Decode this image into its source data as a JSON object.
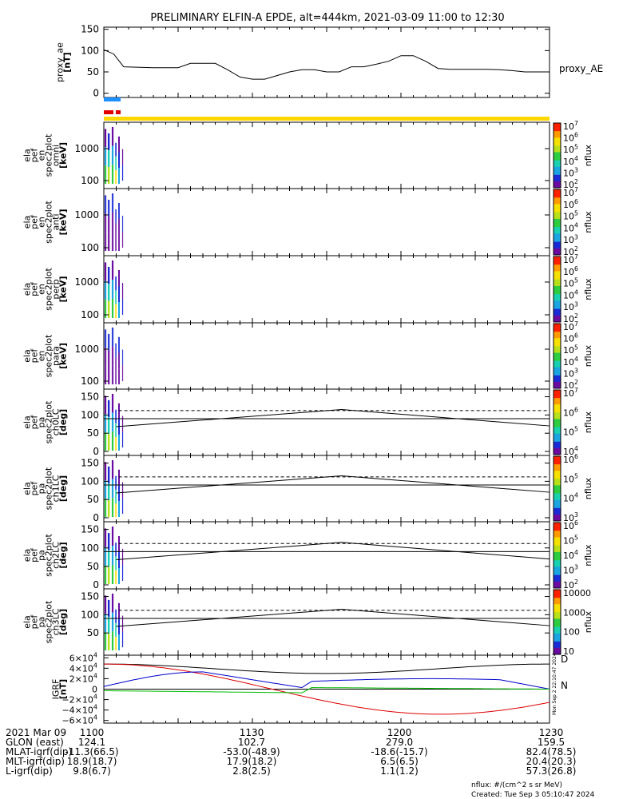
{
  "title": "PRELIMINARY ELFIN-A EPDE, alt=444km, 2021-03-09 11:00 to 12:30",
  "colors": {
    "ae_line": "#000000",
    "bar_blue": "#1e90ff",
    "bar_red": "#e00000",
    "bar_yellow": "#ffd700",
    "bx": "#0000cc",
    "by": "#00bb00",
    "bz": "#dd0000",
    "b_total": "#000000"
  },
  "chart_data": [
    {
      "type": "line",
      "panel": "proxy_ae",
      "ylabel": [
        "proxy_ae",
        "[nT]"
      ],
      "legend": "proxy_AE",
      "ylim": [
        -10,
        155
      ],
      "yticks": [
        "0",
        "50",
        "100",
        "150"
      ],
      "ytick_values": [
        0,
        50,
        100,
        150
      ],
      "x_minutes": [
        0,
        4,
        8,
        20,
        30,
        35,
        45,
        50,
        55,
        60,
        65,
        68,
        75,
        80,
        85,
        90,
        95,
        100,
        105,
        110,
        115,
        120,
        125,
        130,
        135,
        140,
        145,
        150,
        155,
        160,
        165,
        170,
        175,
        180
      ],
      "values": [
        102,
        92,
        62,
        60,
        60,
        70,
        70,
        55,
        38,
        33,
        33,
        38,
        50,
        55,
        55,
        50,
        50,
        62,
        62,
        68,
        75,
        88,
        88,
        75,
        58,
        56,
        56,
        56,
        56,
        55,
        53,
        50,
        50,
        50
      ]
    },
    {
      "type": "heatmap",
      "panel": "omni",
      "ylabel": [
        "ela",
        "pef",
        "en",
        "spec2plot",
        "omni",
        "[keV]"
      ],
      "yticks": [
        "100",
        "1000"
      ],
      "colorbar_ticks": [
        "10^7",
        "10^6",
        "10^5",
        "10^4",
        "10^3",
        "10^2"
      ],
      "colorbar_label": "nflux"
    },
    {
      "type": "heatmap",
      "panel": "anti",
      "ylabel": [
        "ela",
        "pef",
        "en",
        "spec2plot",
        "anti",
        "[keV]"
      ],
      "yticks": [
        "100",
        "1000"
      ],
      "colorbar_ticks": [
        "10^7",
        "10^6",
        "10^5",
        "10^4",
        "10^3",
        "10^2"
      ],
      "colorbar_label": "nflux"
    },
    {
      "type": "heatmap",
      "panel": "perp",
      "ylabel": [
        "ela",
        "pef",
        "en",
        "spec2plot",
        "perp",
        "[keV]"
      ],
      "yticks": [
        "100",
        "1000"
      ],
      "colorbar_ticks": [
        "10^7",
        "10^6",
        "10^5",
        "10^4",
        "10^3",
        "10^2"
      ],
      "colorbar_label": "nflux"
    },
    {
      "type": "heatmap",
      "panel": "para",
      "ylabel": [
        "ela",
        "pef",
        "en",
        "spec2plot",
        "para",
        "[keV]"
      ],
      "yticks": [
        "100",
        "1000"
      ],
      "colorbar_ticks": [
        "10^7",
        "10^6",
        "10^5",
        "10^4",
        "10^3",
        "10^2"
      ],
      "colorbar_label": "nflux"
    },
    {
      "type": "heatmap",
      "panel": "ch0LC",
      "ylabel": [
        "ela",
        "pef",
        "pa",
        "spec2plot",
        "ch0LC",
        "[deg]"
      ],
      "yticks": [
        "0",
        "50",
        "100",
        "150"
      ],
      "colorbar_ticks": [
        "10^7",
        "10^6",
        "10^5",
        "10^4"
      ],
      "colorbar_label": "nflux"
    },
    {
      "type": "heatmap",
      "panel": "ch1LC",
      "ylabel": [
        "ela",
        "pef",
        "pa",
        "spec2plot",
        "ch1LC",
        "[deg]"
      ],
      "yticks": [
        "0",
        "50",
        "100",
        "150"
      ],
      "colorbar_ticks": [
        "10^6",
        "10^5",
        "10^4",
        "10^3"
      ],
      "colorbar_label": "nflux"
    },
    {
      "type": "heatmap",
      "panel": "ch2LC",
      "ylabel": [
        "ela",
        "pef",
        "pa",
        "spec2plot",
        "ch2LC",
        "[deg]"
      ],
      "yticks": [
        "0",
        "50",
        "100",
        "150"
      ],
      "colorbar_ticks": [
        "10^6",
        "10^5",
        "10^4",
        "10^3",
        "10^2"
      ],
      "colorbar_label": "nflux"
    },
    {
      "type": "heatmap",
      "panel": "ch3LC",
      "ylabel": [
        "ela",
        "pef",
        "pa",
        "spec2plot",
        "ch3LC",
        "[deg]"
      ],
      "yticks": [
        "50",
        "100",
        "150"
      ],
      "colorbar_ticks": [
        "10000",
        "1000",
        "100",
        "10"
      ],
      "colorbar_label": "nflux"
    },
    {
      "type": "line",
      "panel": "IGRF",
      "ylabel": [
        "IGRF",
        "[nT]"
      ],
      "ylim": [
        -65000,
        65000
      ],
      "yticks": [
        "6×10^4",
        "4×10^4",
        "2×10^4",
        "0",
        "−2×10^4",
        "−4×10^4",
        "−6×10^4"
      ],
      "ytick_values": [
        60000,
        40000,
        20000,
        0,
        -20000,
        -40000,
        -60000
      ],
      "legend": [
        "D",
        "N"
      ]
    }
  ],
  "xaxis": {
    "range_minutes": [
      0,
      180
    ],
    "tick_labels": [
      "1100",
      "1130",
      "1200",
      "1230"
    ],
    "tick_minutes": [
      0,
      30,
      60,
      90
    ]
  },
  "footer_rows": [
    {
      "label": "2021 Mar 09",
      "values": [
        "1100",
        "1130",
        "1200",
        "1230"
      ]
    },
    {
      "label": "GLON (east)",
      "values": [
        "124.1",
        "102.7",
        "279.0",
        "159.5"
      ]
    },
    {
      "label": "MLAT-igrf(dip)",
      "values": [
        "-11.3(66.5)",
        "-53.0(-48.9)",
        "-18.6(-15.7)",
        "82.4(78.5)"
      ]
    },
    {
      "label": "MLT-igrf(dip)",
      "values": [
        "18.9(18.7)",
        "17.9(18.2)",
        "6.5(6.5)",
        "20.4(20.3)"
      ]
    },
    {
      "label": "L-igrf(dip)",
      "values": [
        "9.8(6.7)",
        "2.8(2.5)",
        "1.1(1.2)",
        "57.3(26.8)"
      ]
    }
  ],
  "footnote_units": "nflux: #/(cm^2 s sr MeV)",
  "footnote_created": "Created: Tue Sep  3 05:10:47 2024",
  "side_stamp": "Mon Sep  2 22:10:47 2024"
}
